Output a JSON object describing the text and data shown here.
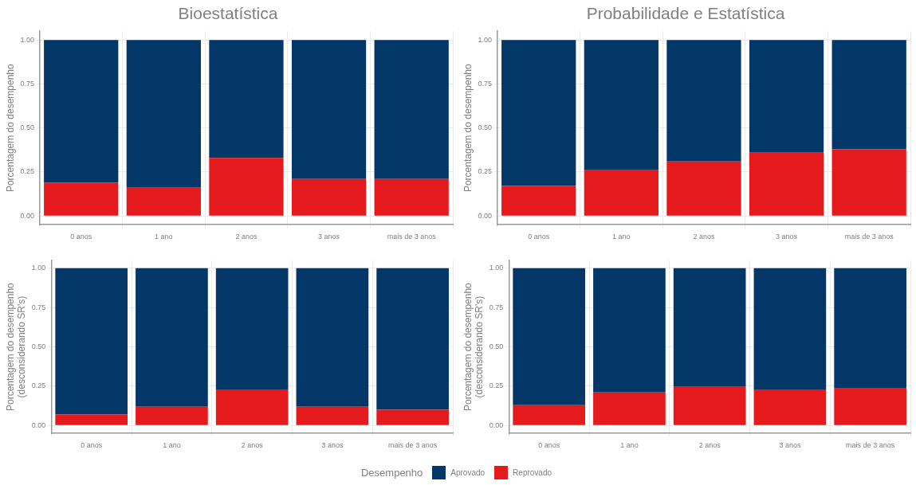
{
  "chart_data": [
    {
      "type": "bar",
      "title": "Bioestatística",
      "ylabel": "Porcentagem do desempenho",
      "categories": [
        "0 anos",
        "1 ano",
        "2 anos",
        "3 anos",
        "mais de 3 anos"
      ],
      "stacked": true,
      "grid": true,
      "legend": "bottom",
      "legend_title": "Desempenho",
      "ylim": [
        -0.05,
        1.05
      ],
      "yticks": [
        {
          "value": 0,
          "label": "0.00"
        },
        {
          "value": 0.25,
          "label": "0.25"
        },
        {
          "value": 0.5,
          "label": "0.50"
        },
        {
          "value": 0.75,
          "label": "0.75"
        },
        {
          "value": 1,
          "label": "1.00"
        }
      ],
      "series": [
        {
          "name": "Reprovado",
          "color": "#e41a1c",
          "values": [
            0.19,
            0.16,
            0.33,
            0.21,
            0.21
          ]
        },
        {
          "name": "Aprovado",
          "color": "#023768",
          "values": [
            0.81,
            0.84,
            0.67,
            0.79,
            0.79
          ]
        }
      ]
    },
    {
      "type": "bar",
      "title": "Probabilidade e Estatística",
      "ylabel": "Porcentagem do desempenho",
      "categories": [
        "0 anos",
        "1 ano",
        "2 anos",
        "3 anos",
        "mais de 3 anos"
      ],
      "stacked": true,
      "grid": true,
      "ylim": [
        -0.05,
        1.05
      ],
      "yticks": [
        {
          "value": 0,
          "label": "0.00"
        },
        {
          "value": 0.25,
          "label": "0.25"
        },
        {
          "value": 0.5,
          "label": "0.50"
        },
        {
          "value": 0.75,
          "label": "0.75"
        },
        {
          "value": 1,
          "label": "1.00"
        }
      ],
      "series": [
        {
          "color": "#e41a1c",
          "values": [
            0.17,
            0.26,
            0.31,
            0.36,
            0.38
          ]
        },
        {
          "color": "#023768",
          "values": [
            0.83,
            0.74,
            0.69,
            0.64,
            0.62
          ]
        }
      ]
    },
    {
      "type": "bar",
      "ylabel": "Porcentagem do desempenho\n(desconsiderando SR's)",
      "categories": [
        "0 anos",
        "1 ano",
        "2 anos",
        "3 anos",
        "mais de 3 anos"
      ],
      "stacked": true,
      "grid": true,
      "ylim": [
        -0.05,
        1.05
      ],
      "yticks": [
        {
          "value": 0,
          "label": "0.00"
        },
        {
          "value": 0.25,
          "label": "0.25"
        },
        {
          "value": 0.5,
          "label": "0.50"
        },
        {
          "value": 0.75,
          "label": "0.75"
        },
        {
          "value": 1,
          "label": "1.00"
        }
      ],
      "series": [
        {
          "color": "#e41a1c",
          "values": [
            0.07,
            0.12,
            0.23,
            0.12,
            0.1
          ]
        },
        {
          "color": "#023768",
          "values": [
            0.93,
            0.88,
            0.77,
            0.88,
            0.9
          ]
        }
      ]
    },
    {
      "type": "bar",
      "ylabel": "Porcentagem do desempenho\n(desconsiderando SR's)",
      "categories": [
        "0 anos",
        "1 ano",
        "2 anos",
        "3 anos",
        "mais de 3 anos"
      ],
      "stacked": true,
      "grid": true,
      "ylim": [
        -0.05,
        1.05
      ],
      "yticks": [
        {
          "value": 0,
          "label": "0.00"
        },
        {
          "value": 0.25,
          "label": "0.25"
        },
        {
          "value": 0.5,
          "label": "0.50"
        },
        {
          "value": 0.75,
          "label": "0.75"
        },
        {
          "value": 1,
          "label": "1.00"
        }
      ],
      "series": [
        {
          "color": "#e41a1c",
          "values": [
            0.13,
            0.21,
            0.25,
            0.23,
            0.24
          ]
        },
        {
          "color": "#023768",
          "values": [
            0.87,
            0.79,
            0.75,
            0.77,
            0.76
          ]
        }
      ]
    }
  ]
}
